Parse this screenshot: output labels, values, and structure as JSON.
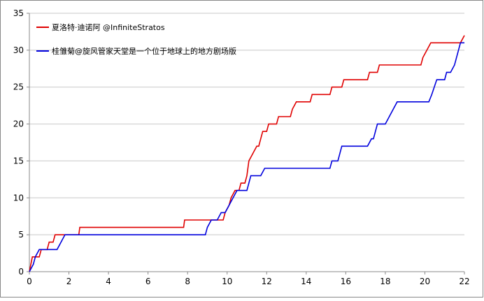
{
  "chart_data": {
    "type": "line",
    "series": [
      {
        "name": "夏洛特·迪诺阿 @InfiniteStratos",
        "color": "#e00000",
        "x": [
          0,
          0.15,
          0.5,
          0.6,
          0.9,
          1.0,
          1.2,
          1.3,
          2.5,
          2.55,
          7.8,
          7.85,
          9.8,
          9.9,
          10.1,
          10.2,
          10.4,
          10.6,
          10.7,
          10.9,
          11.0,
          11.1,
          11.3,
          11.5,
          11.6,
          11.7,
          11.8,
          12.0,
          12.1,
          12.5,
          12.6,
          13.2,
          13.3,
          13.5,
          14.2,
          14.3,
          15.2,
          15.3,
          15.8,
          15.9,
          17.1,
          17.2,
          17.6,
          17.7,
          19.8,
          19.9,
          20.1,
          20.3,
          21.8,
          22
        ],
        "values": [
          0,
          2,
          2,
          3,
          3,
          4,
          4,
          5,
          5,
          6,
          6,
          7,
          7,
          8,
          9,
          10,
          11,
          11,
          12,
          12,
          13,
          15,
          16,
          17,
          17,
          18,
          19,
          19,
          20,
          20,
          21,
          21,
          22,
          23,
          23,
          24,
          24,
          25,
          25,
          26,
          26,
          27,
          27,
          28,
          28,
          29,
          30,
          31,
          31,
          32
        ]
      },
      {
        "name": "桂雏菊@旋风管家天堂是一个位于地球上的地方剧场版",
        "color": "#0000dd",
        "x": [
          0,
          0.2,
          0.3,
          0.5,
          1.4,
          1.6,
          1.8,
          8.9,
          9.0,
          9.2,
          9.5,
          9.7,
          9.9,
          10.1,
          10.3,
          10.5,
          11.0,
          11.1,
          11.2,
          11.7,
          11.9,
          15.2,
          15.3,
          15.6,
          15.8,
          17.1,
          17.3,
          17.4,
          17.6,
          18.0,
          18.2,
          18.4,
          18.6,
          20.2,
          20.35,
          20.6,
          21.0,
          21.1,
          21.3,
          21.5,
          21.6,
          21.8,
          22
        ],
        "values": [
          0,
          1,
          2,
          3,
          3,
          4,
          5,
          5,
          6,
          7,
          7,
          8,
          8,
          9,
          10,
          11,
          11,
          12,
          13,
          13,
          14,
          14,
          15,
          15,
          17,
          17,
          18,
          18,
          20,
          20,
          21,
          22,
          23,
          23,
          24,
          26,
          26,
          27,
          27,
          28,
          29,
          31,
          31
        ]
      }
    ],
    "xlim": [
      0,
      22
    ],
    "xticks": [
      0,
      2,
      4,
      6,
      8,
      10,
      12,
      14,
      16,
      18,
      20,
      22
    ],
    "ylim": [
      0,
      35
    ],
    "yticks": [
      0,
      5,
      10,
      15,
      20,
      25,
      30,
      35
    ],
    "grid": true,
    "legend": "upper left"
  }
}
